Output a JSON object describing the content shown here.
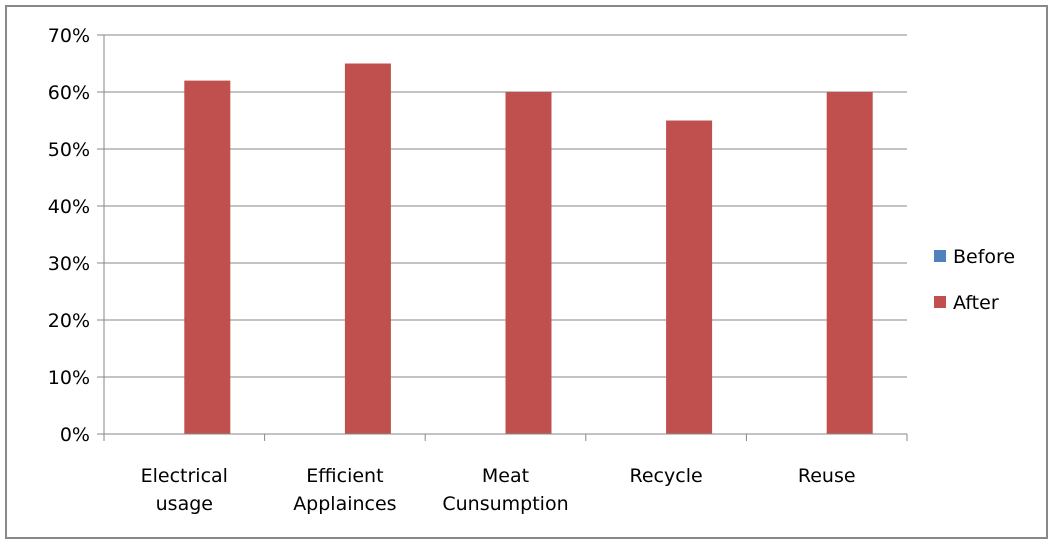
{
  "chart_data": {
    "type": "bar",
    "categories": [
      [
        "Electrical",
        "usage"
      ],
      [
        "Efficient",
        "Applainces"
      ],
      [
        "Meat",
        "Cunsumption"
      ],
      [
        "Recycle"
      ],
      [
        "Reuse"
      ]
    ],
    "series": [
      {
        "name": "Before",
        "color": "#4f81bd",
        "values": [
          0,
          0,
          0,
          0,
          0
        ]
      },
      {
        "name": "After",
        "color": "#c0504d",
        "values": [
          0.62,
          0.65,
          0.6,
          0.55,
          0.6
        ]
      }
    ],
    "ylim": [
      0,
      0.7
    ],
    "yticks": [
      "0%",
      "10%",
      "20%",
      "30%",
      "40%",
      "50%",
      "60%",
      "70%"
    ],
    "grid": true,
    "legend_position": "right"
  }
}
